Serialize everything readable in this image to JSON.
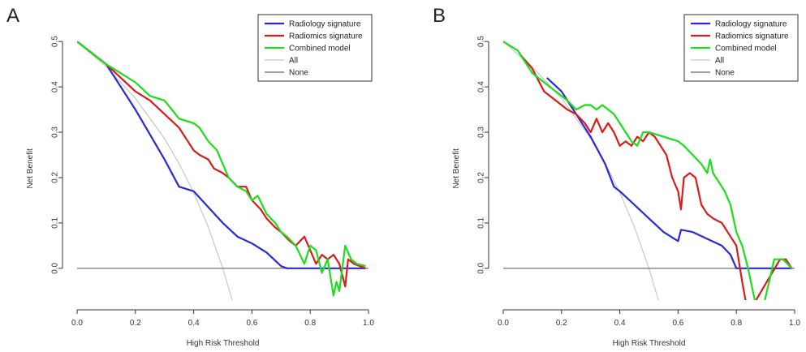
{
  "chart_data": [
    {
      "panel": "A",
      "type": "line",
      "xlabel": "High Risk Threshold",
      "ylabel": "Net Benefit",
      "xlim": [
        0,
        1
      ],
      "ylim": [
        -0.07,
        0.52
      ],
      "xticks": [
        "0.0",
        "0.2",
        "0.4",
        "0.6",
        "0.8",
        "1.0"
      ],
      "yticks": [
        "0.0",
        "0.1",
        "0.2",
        "0.3",
        "0.4",
        "0.5"
      ],
      "legend_position": "top-right",
      "series": [
        {
          "name": "Radiology signature",
          "color": "#2a2ad4",
          "x": [
            0,
            0.1,
            0.2,
            0.3,
            0.35,
            0.4,
            0.5,
            0.55,
            0.6,
            0.65,
            0.7,
            0.72,
            0.99
          ],
          "y": [
            0.5,
            0.45,
            0.35,
            0.24,
            0.18,
            0.17,
            0.1,
            0.07,
            0.055,
            0.035,
            0.005,
            0,
            0
          ]
        },
        {
          "name": "Radiomics signature",
          "color": "#dd1a1a",
          "x": [
            0,
            0.1,
            0.15,
            0.2,
            0.25,
            0.3,
            0.35,
            0.38,
            0.4,
            0.42,
            0.45,
            0.47,
            0.5,
            0.52,
            0.55,
            0.58,
            0.6,
            0.63,
            0.65,
            0.68,
            0.7,
            0.73,
            0.75,
            0.78,
            0.8,
            0.82,
            0.84,
            0.86,
            0.88,
            0.9,
            0.92,
            0.93,
            0.95,
            0.97,
            0.99
          ],
          "y": [
            0.5,
            0.45,
            0.42,
            0.39,
            0.37,
            0.34,
            0.31,
            0.28,
            0.26,
            0.25,
            0.24,
            0.22,
            0.21,
            0.2,
            0.18,
            0.18,
            0.15,
            0.13,
            0.11,
            0.09,
            0.08,
            0.06,
            0.05,
            0.07,
            0.04,
            0.01,
            0.03,
            0.02,
            0.03,
            0.01,
            -0.04,
            0.02,
            0.01,
            0.005,
            0.0
          ]
        },
        {
          "name": "Combined model",
          "color": "#1adf1a",
          "x": [
            0,
            0.1,
            0.15,
            0.2,
            0.25,
            0.3,
            0.35,
            0.4,
            0.42,
            0.45,
            0.48,
            0.5,
            0.52,
            0.55,
            0.58,
            0.6,
            0.62,
            0.65,
            0.68,
            0.7,
            0.72,
            0.75,
            0.78,
            0.8,
            0.82,
            0.84,
            0.86,
            0.88,
            0.89,
            0.9,
            0.92,
            0.94,
            0.96,
            0.99
          ],
          "y": [
            0.5,
            0.45,
            0.43,
            0.41,
            0.38,
            0.37,
            0.33,
            0.32,
            0.31,
            0.28,
            0.26,
            0.23,
            0.2,
            0.18,
            0.17,
            0.15,
            0.16,
            0.12,
            0.1,
            0.08,
            0.07,
            0.05,
            0.01,
            0.05,
            0.04,
            -0.01,
            0.02,
            -0.06,
            -0.03,
            -0.05,
            0.05,
            0.02,
            0.01,
            0.005
          ]
        },
        {
          "name": "All",
          "color": "#c8c8c8",
          "x": [
            0,
            0.1,
            0.2,
            0.3,
            0.35,
            0.4,
            0.45,
            0.5,
            0.54
          ],
          "y": [
            0.5,
            0.444,
            0.375,
            0.286,
            0.231,
            0.167,
            0.091,
            0.0,
            -0.087
          ]
        },
        {
          "name": "None",
          "color": "#666666",
          "x": [
            0,
            1
          ],
          "y": [
            0,
            0
          ]
        }
      ]
    },
    {
      "panel": "B",
      "type": "line",
      "xlabel": "High Risk Threshold",
      "ylabel": "Net Benefit",
      "xlim": [
        0,
        1
      ],
      "ylim": [
        -0.07,
        0.52
      ],
      "xticks": [
        "0.0",
        "0.2",
        "0.4",
        "0.6",
        "0.8",
        "1.0"
      ],
      "yticks": [
        "0.0",
        "0.1",
        "0.2",
        "0.3",
        "0.4",
        "0.5"
      ],
      "legend_position": "top-right",
      "series": [
        {
          "name": "Radiology signature",
          "color": "#2a2ad4",
          "x": [
            0.15,
            0.2,
            0.25,
            0.3,
            0.35,
            0.38,
            0.4,
            0.45,
            0.5,
            0.55,
            0.6,
            0.61,
            0.65,
            0.7,
            0.75,
            0.78,
            0.8,
            0.82,
            0.9,
            0.99
          ],
          "y": [
            0.42,
            0.39,
            0.34,
            0.29,
            0.23,
            0.18,
            0.17,
            0.14,
            0.11,
            0.08,
            0.06,
            0.085,
            0.08,
            0.065,
            0.05,
            0.03,
            0,
            0,
            0,
            0
          ]
        },
        {
          "name": "Radiomics signature",
          "color": "#dd1a1a",
          "x": [
            0.06,
            0.1,
            0.14,
            0.18,
            0.22,
            0.25,
            0.28,
            0.3,
            0.32,
            0.34,
            0.36,
            0.38,
            0.4,
            0.42,
            0.44,
            0.46,
            0.48,
            0.5,
            0.52,
            0.54,
            0.56,
            0.58,
            0.6,
            0.61,
            0.62,
            0.64,
            0.66,
            0.68,
            0.7,
            0.72,
            0.75,
            0.78,
            0.8,
            0.82,
            0.84,
            0.95,
            0.97,
            0.99
          ],
          "y": [
            0.47,
            0.44,
            0.39,
            0.37,
            0.35,
            0.34,
            0.32,
            0.3,
            0.33,
            0.3,
            0.32,
            0.3,
            0.27,
            0.28,
            0.27,
            0.29,
            0.28,
            0.3,
            0.29,
            0.27,
            0.25,
            0.2,
            0.17,
            0.13,
            0.2,
            0.21,
            0.2,
            0.14,
            0.12,
            0.11,
            0.1,
            0.07,
            0.05,
            -0.03,
            -0.1,
            0.02,
            0.02,
            0.0
          ]
        },
        {
          "name": "Combined model",
          "color": "#1adf1a",
          "x": [
            0.0,
            0.05,
            0.08,
            0.1,
            0.14,
            0.18,
            0.2,
            0.22,
            0.25,
            0.28,
            0.3,
            0.32,
            0.34,
            0.36,
            0.38,
            0.4,
            0.42,
            0.44,
            0.46,
            0.48,
            0.5,
            0.55,
            0.6,
            0.62,
            0.65,
            0.68,
            0.7,
            0.71,
            0.72,
            0.74,
            0.76,
            0.78,
            0.8,
            0.82,
            0.84,
            0.86,
            0.88,
            0.93,
            0.96,
            0.99
          ],
          "y": [
            0.5,
            0.48,
            0.45,
            0.43,
            0.41,
            0.39,
            0.38,
            0.37,
            0.35,
            0.36,
            0.36,
            0.35,
            0.36,
            0.35,
            0.34,
            0.32,
            0.3,
            0.28,
            0.27,
            0.3,
            0.3,
            0.29,
            0.28,
            0.27,
            0.25,
            0.23,
            0.21,
            0.24,
            0.21,
            0.19,
            0.17,
            0.14,
            0.08,
            0.05,
            0.0,
            -0.06,
            -0.12,
            0.02,
            0.02,
            0.0
          ]
        },
        {
          "name": "All",
          "color": "#c8c8c8",
          "x": [
            0,
            0.1,
            0.2,
            0.3,
            0.35,
            0.4,
            0.45,
            0.5,
            0.54
          ],
          "y": [
            0.5,
            0.444,
            0.375,
            0.286,
            0.231,
            0.167,
            0.091,
            0.0,
            -0.087
          ]
        },
        {
          "name": "None",
          "color": "#666666",
          "x": [
            0,
            1
          ],
          "y": [
            0,
            0
          ]
        }
      ]
    }
  ]
}
